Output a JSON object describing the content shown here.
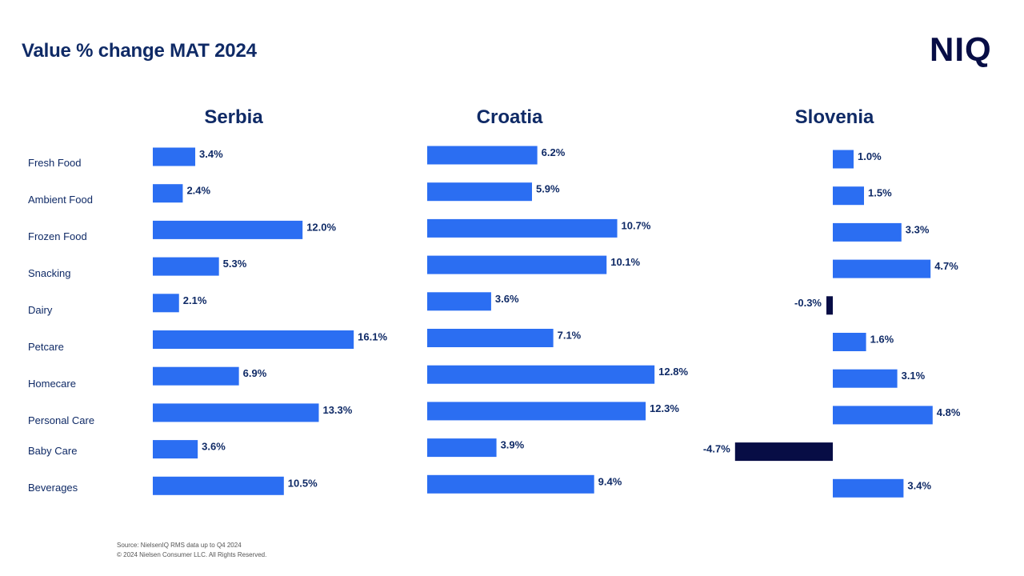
{
  "header": {
    "title": "Value % change MAT 2024",
    "logo_text": "NIQ"
  },
  "footer": {
    "source": "Source: NielsenIQ RMS data up to Q4 2024",
    "copyright": "© 2024 Nielsen Consumer LLC. All Rights Reserved."
  },
  "colors": {
    "positive": "#2b6ef2",
    "negative": "#070d45",
    "text": "#0f2a66"
  },
  "chart_data": [
    {
      "type": "bar",
      "orientation": "horizontal",
      "title": "Serbia",
      "categories": [
        "Fresh Food",
        "Ambient Food",
        "Frozen Food",
        "Snacking",
        "Dairy",
        "Petcare",
        "Homecare",
        "Personal Care",
        "Baby Care",
        "Beverages"
      ],
      "values": [
        3.4,
        2.4,
        12.0,
        5.3,
        2.1,
        16.1,
        6.9,
        13.3,
        3.6,
        10.5
      ],
      "labels": [
        "3.4%",
        "2.4%",
        "12.0%",
        "5.3%",
        "2.1%",
        "16.1%",
        "6.9%",
        "13.3%",
        "3.6%",
        "10.5%"
      ],
      "unit": "%",
      "grid": false
    },
    {
      "type": "bar",
      "orientation": "horizontal",
      "title": "Croatia",
      "categories": [
        "Fresh Food",
        "Ambient Food",
        "Frozen Food",
        "Snacking",
        "Dairy",
        "Petcare",
        "Homecare",
        "Personal Care",
        "Baby Care",
        "Beverages"
      ],
      "values": [
        6.2,
        5.9,
        10.7,
        10.1,
        3.6,
        7.1,
        12.8,
        12.3,
        3.9,
        9.4
      ],
      "labels": [
        "6.2%",
        "5.9%",
        "10.7%",
        "10.1%",
        "3.6%",
        "7.1%",
        "12.8%",
        "12.3%",
        "3.9%",
        "9.4%"
      ],
      "unit": "%",
      "grid": false
    },
    {
      "type": "bar",
      "orientation": "horizontal",
      "title": "Slovenia",
      "categories": [
        "Fresh Food",
        "Ambient Food",
        "Frozen Food",
        "Snacking",
        "Dairy",
        "Petcare",
        "Homecare",
        "Personal Care",
        "Baby Care",
        "Beverages"
      ],
      "values": [
        1.0,
        1.5,
        3.3,
        4.7,
        -0.3,
        1.6,
        3.1,
        4.8,
        -4.7,
        3.4
      ],
      "labels": [
        "1.0%",
        "1.5%",
        "3.3%",
        "4.7%",
        "-0.3%",
        "1.6%",
        "3.1%",
        "4.8%",
        "-4.7%",
        "3.4%"
      ],
      "unit": "%",
      "grid": false
    }
  ]
}
